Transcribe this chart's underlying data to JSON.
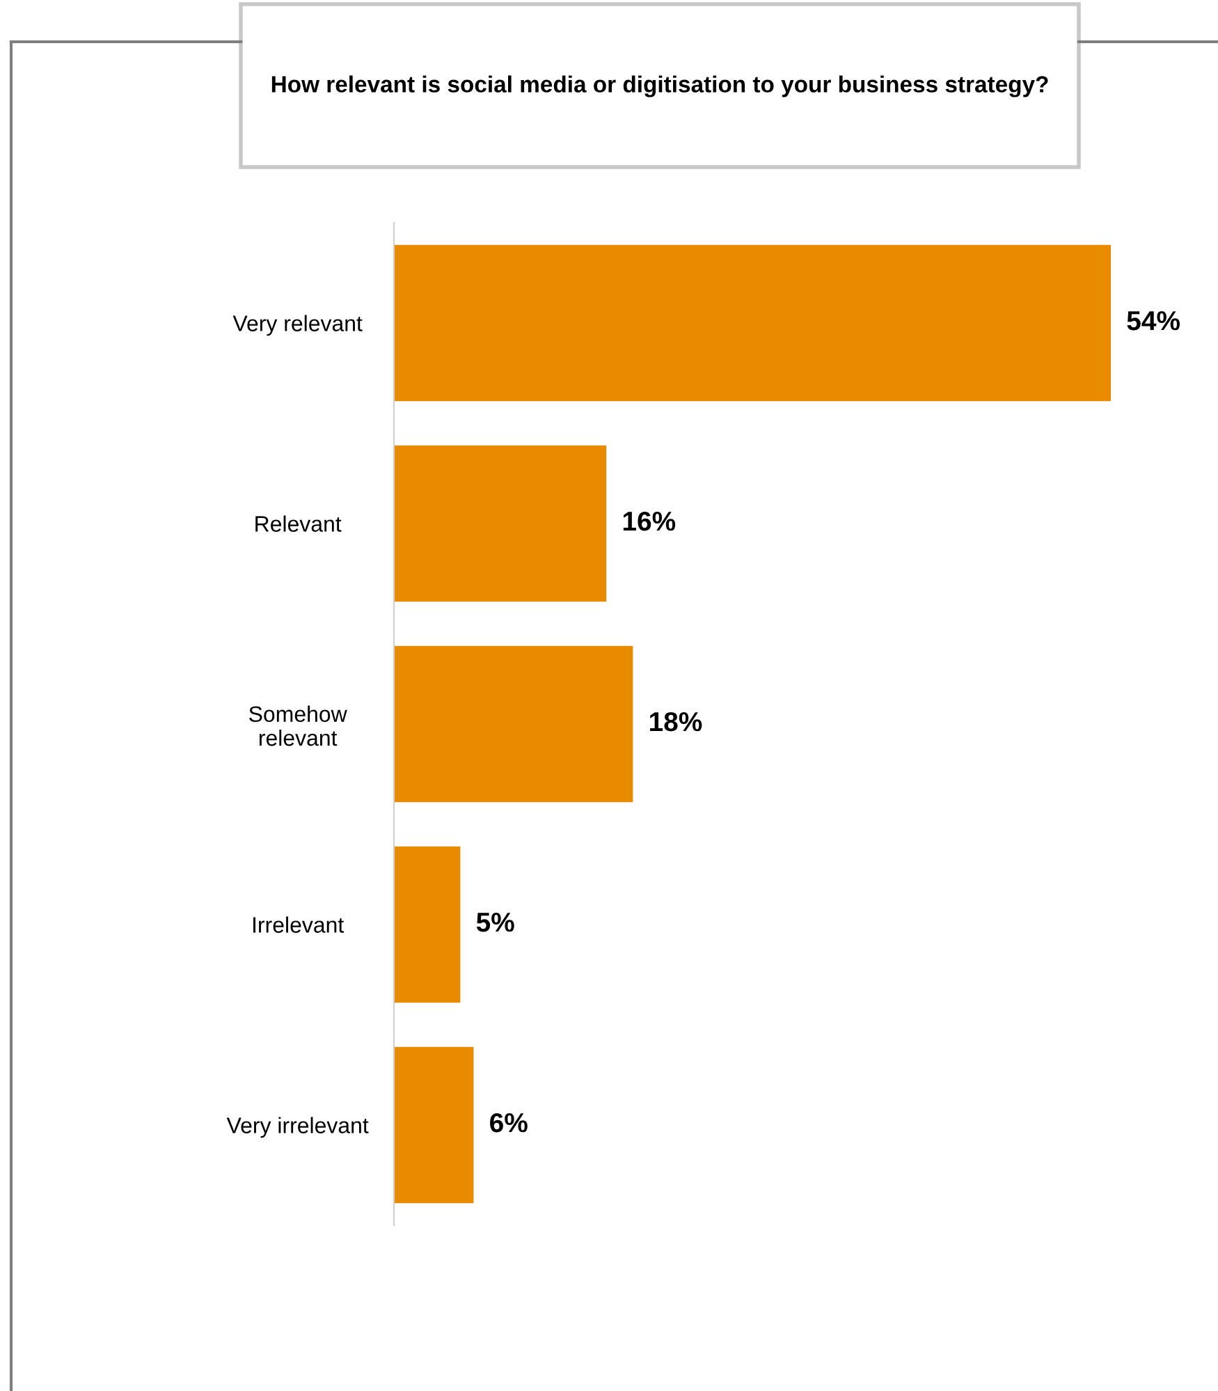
{
  "chart_data": {
    "type": "bar",
    "orientation": "horizontal",
    "title": "How relevant is social media or digitisation to your business strategy?",
    "categories": [
      "Very relevant",
      "Relevant",
      "Somehow\nrelevant",
      "Irrelevant",
      "Very irrelevant"
    ],
    "values": [
      54,
      16,
      18,
      5,
      6
    ],
    "color": "#e98b00",
    "value_labels": [
      "54%",
      "16%",
      "18%",
      "5%",
      "6%"
    ],
    "tick_labels": "y",
    "grid": false,
    "legend": false
  }
}
